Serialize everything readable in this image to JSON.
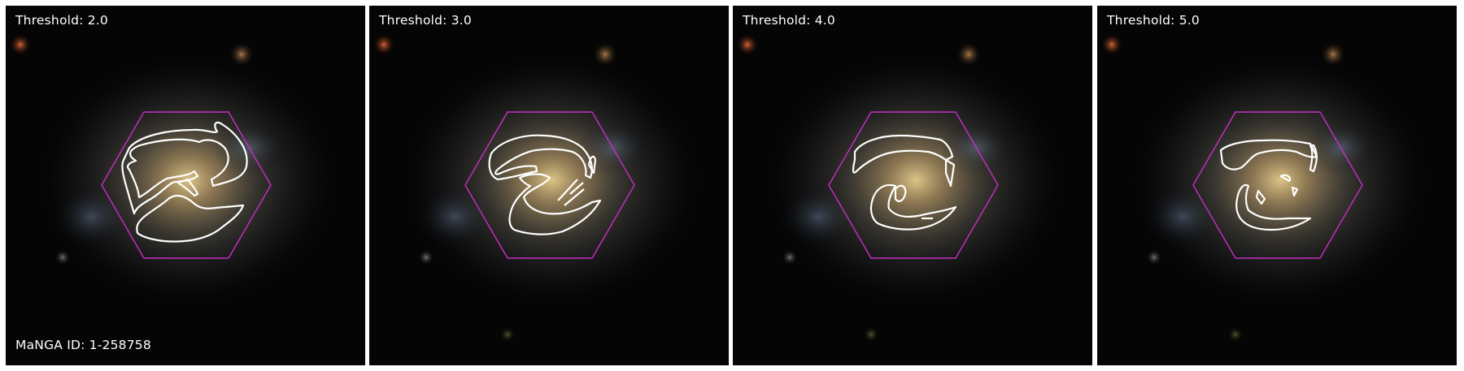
{
  "figure": {
    "manga_id": "MaNGA ID: 1-258758",
    "panels": [
      {
        "threshold_label": "Threshold: 2.0"
      },
      {
        "threshold_label": "Threshold: 3.0"
      },
      {
        "threshold_label": "Threshold: 4.0"
      },
      {
        "threshold_label": "Threshold: 5.0"
      }
    ],
    "colors": {
      "hexagon": "#c62fc6",
      "contour": "#ffffff",
      "background": "#000000",
      "galaxy_core": "#d2b47a"
    }
  }
}
